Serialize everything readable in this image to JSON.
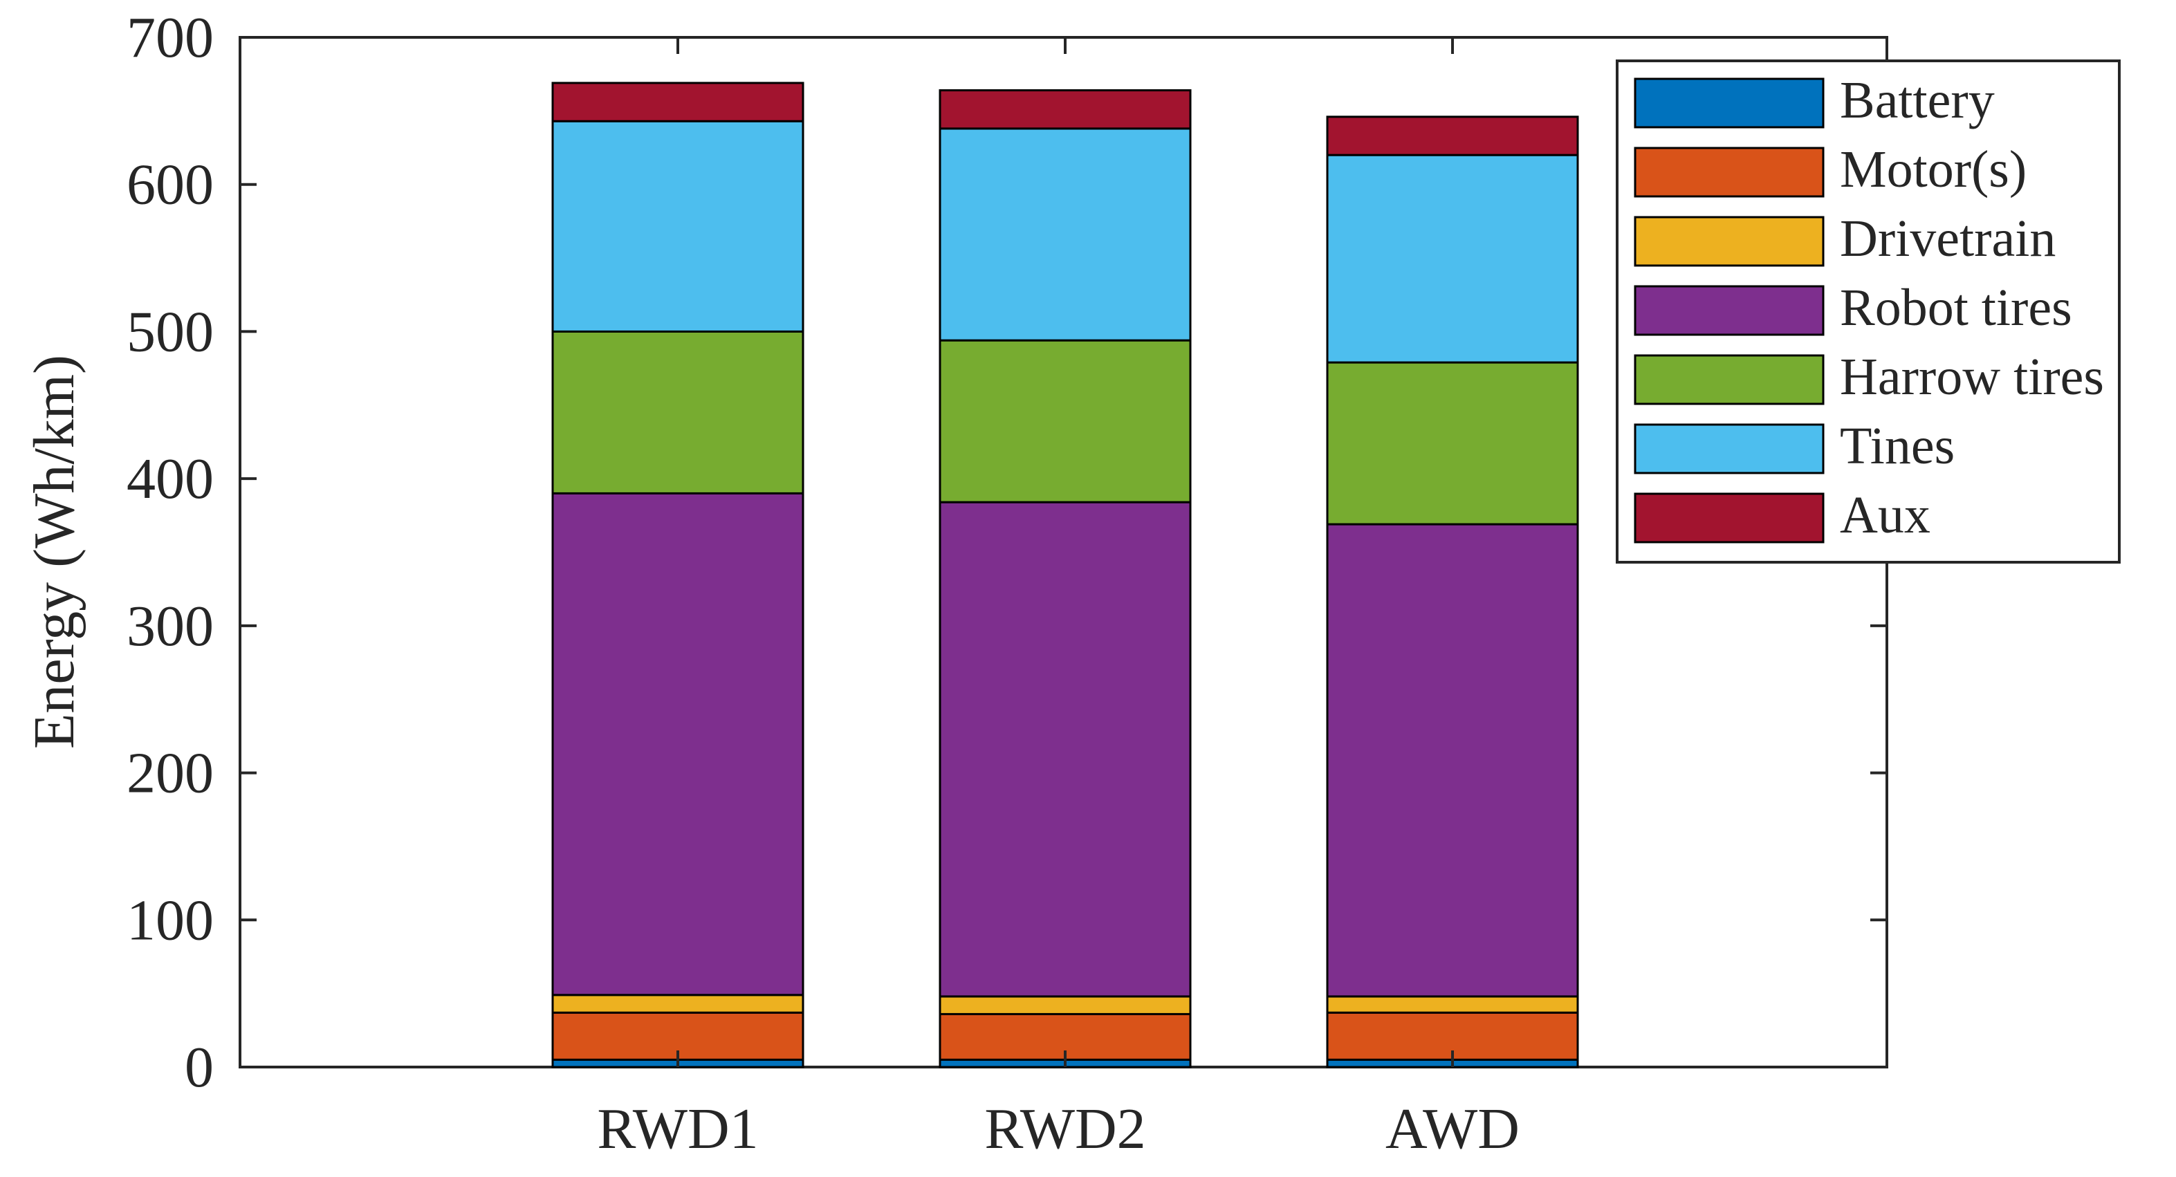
{
  "chart_data": {
    "type": "bar",
    "stacked": true,
    "title": "",
    "xlabel": "",
    "ylabel": "Energy (Wh/km)",
    "ylim": [
      0,
      700
    ],
    "yticks": [
      0,
      100,
      200,
      300,
      400,
      500,
      600,
      700
    ],
    "categories": [
      "RWD1",
      "RWD2",
      "AWD"
    ],
    "legend_position": "top-right",
    "grid": false,
    "series": [
      {
        "name": "Battery",
        "color": "#0072BD",
        "values": [
          5,
          5,
          5
        ]
      },
      {
        "name": "Motor(s)",
        "color": "#D95319",
        "values": [
          32,
          31,
          32
        ]
      },
      {
        "name": "Drivetrain",
        "color": "#EDB120",
        "values": [
          12,
          12,
          11
        ]
      },
      {
        "name": "Robot tires",
        "color": "#7E2F8E",
        "values": [
          341,
          336,
          321
        ]
      },
      {
        "name": "Harrow tires",
        "color": "#77AC30",
        "values": [
          110,
          110,
          110
        ]
      },
      {
        "name": "Tines",
        "color": "#4DBEEE",
        "values": [
          143,
          144,
          141
        ]
      },
      {
        "name": "Aux",
        "color": "#A2142F",
        "values": [
          26,
          26,
          26
        ]
      }
    ]
  }
}
